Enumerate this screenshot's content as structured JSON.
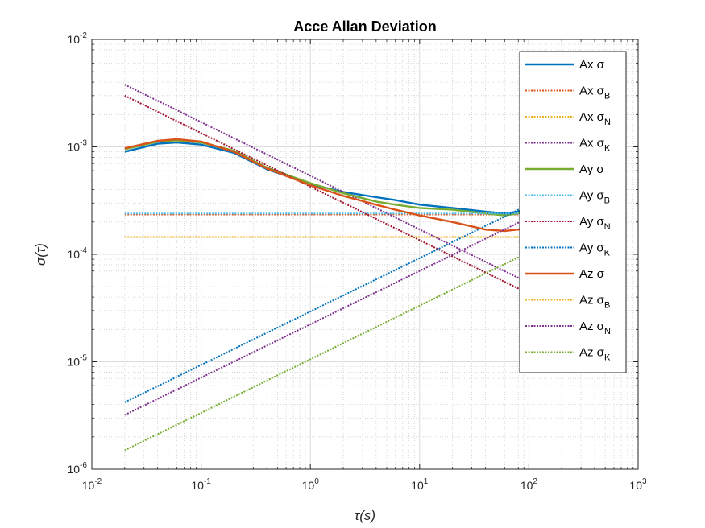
{
  "chart_data": {
    "type": "line",
    "title": "Acce Allan Deviation",
    "xlabel": "τ(s)",
    "ylabel": "σ(τ)",
    "xscale": "log",
    "yscale": "log",
    "xlim": [
      0.01,
      1000
    ],
    "ylim": [
      1e-06,
      0.01
    ],
    "grid": true,
    "minor_grid": true,
    "legend_position": "top-right",
    "x_ticks": [
      {
        "base": "10",
        "exp": "-2"
      },
      {
        "base": "10",
        "exp": "-1"
      },
      {
        "base": "10",
        "exp": "0"
      },
      {
        "base": "10",
        "exp": "1"
      },
      {
        "base": "10",
        "exp": "2"
      },
      {
        "base": "10",
        "exp": "3"
      }
    ],
    "y_ticks": [
      {
        "base": "10",
        "exp": "-6"
      },
      {
        "base": "10",
        "exp": "-5"
      },
      {
        "base": "10",
        "exp": "-4"
      },
      {
        "base": "10",
        "exp": "-3"
      },
      {
        "base": "10",
        "exp": "-2"
      }
    ],
    "series": [
      {
        "name": "Ax σ",
        "sym": "Ax σ",
        "sub": "",
        "color": "#0072BD",
        "dash": "solid",
        "x": [
          0.02,
          0.04,
          0.06,
          0.1,
          0.2,
          0.4,
          1,
          2,
          4,
          6,
          10,
          20,
          40,
          60,
          80,
          100
        ],
        "y": [
          0.0009,
          0.00107,
          0.0011,
          0.00105,
          0.00088,
          0.00062,
          0.00045,
          0.00038,
          0.00034,
          0.00032,
          0.00029,
          0.00027,
          0.00025,
          0.00024,
          0.00025,
          0.00027
        ]
      },
      {
        "name": "Ax σB",
        "sym": "Ax σ",
        "sub": "B",
        "color": "#D95319",
        "dash": "dotted",
        "x": [
          0.02,
          100
        ],
        "y": [
          0.000235,
          0.000235
        ]
      },
      {
        "name": "Ax σN",
        "sym": "Ax σ",
        "sub": "N",
        "color": "#EDB120",
        "dash": "dotted",
        "x": [
          0.02,
          100
        ],
        "y": [
          0.000145,
          0.000145
        ]
      },
      {
        "name": "Ax σK",
        "sym": "Ax σ",
        "sub": "K",
        "color": "#7E2F8E",
        "dash": "dotted",
        "x": [
          0.02,
          100
        ],
        "y": [
          0.0038,
          5.4e-05
        ]
      },
      {
        "name": "Ay σ",
        "sym": "Ay σ",
        "sub": "",
        "color": "#77AC30",
        "dash": "solid",
        "x": [
          0.02,
          0.04,
          0.06,
          0.1,
          0.2,
          0.4,
          1,
          2,
          4,
          6,
          10,
          20,
          40,
          60,
          80,
          100
        ],
        "y": [
          0.00095,
          0.00112,
          0.00115,
          0.0011,
          0.00092,
          0.00064,
          0.00046,
          0.00037,
          0.00031,
          0.00029,
          0.00027,
          0.00026,
          0.00024,
          0.00023,
          0.00024,
          0.00026
        ]
      },
      {
        "name": "Ay σB",
        "sym": "Ay σ",
        "sub": "B",
        "color": "#4DBEEE",
        "dash": "dotted",
        "x": [
          0.02,
          100
        ],
        "y": [
          0.00024,
          0.00024
        ]
      },
      {
        "name": "Ay σN",
        "sym": "Ay σ",
        "sub": "N",
        "color": "#A2142F",
        "dash": "dotted",
        "x": [
          0.02,
          100
        ],
        "y": [
          0.003,
          4.3e-05
        ]
      },
      {
        "name": "Ay σK",
        "sym": "Ay σ",
        "sub": "K",
        "color": "#0072BD",
        "dash": "dotted",
        "x": [
          0.02,
          100
        ],
        "y": [
          4.2e-06,
          0.00029
        ]
      },
      {
        "name": "Az σ",
        "sym": "Az σ",
        "sub": "",
        "color": "#D95319",
        "dash": "solid",
        "x": [
          0.02,
          0.04,
          0.06,
          0.1,
          0.2,
          0.4,
          1,
          2,
          4,
          6,
          10,
          20,
          40,
          60,
          80,
          100
        ],
        "y": [
          0.00097,
          0.00114,
          0.00118,
          0.00112,
          0.0009,
          0.00063,
          0.00044,
          0.00035,
          0.00029,
          0.00026,
          0.00023,
          0.0002,
          0.00017,
          0.000165,
          0.00017,
          0.00018
        ]
      },
      {
        "name": "Az σB",
        "sym": "Az σ",
        "sub": "B",
        "color": "#EDB120",
        "dash": "dotted",
        "x": [
          0.02,
          100
        ],
        "y": [
          0.000145,
          0.000145
        ]
      },
      {
        "name": "Az σN",
        "sym": "Az σ",
        "sub": "N",
        "color": "#7E2F8E",
        "dash": "dotted",
        "x": [
          0.02,
          100
        ],
        "y": [
          3.2e-06,
          0.00022
        ]
      },
      {
        "name": "Az σK",
        "sym": "Az σ",
        "sub": "K",
        "color": "#77AC30",
        "dash": "dotted",
        "x": [
          0.02,
          100
        ],
        "y": [
          1.5e-06,
          0.000105
        ]
      }
    ]
  }
}
